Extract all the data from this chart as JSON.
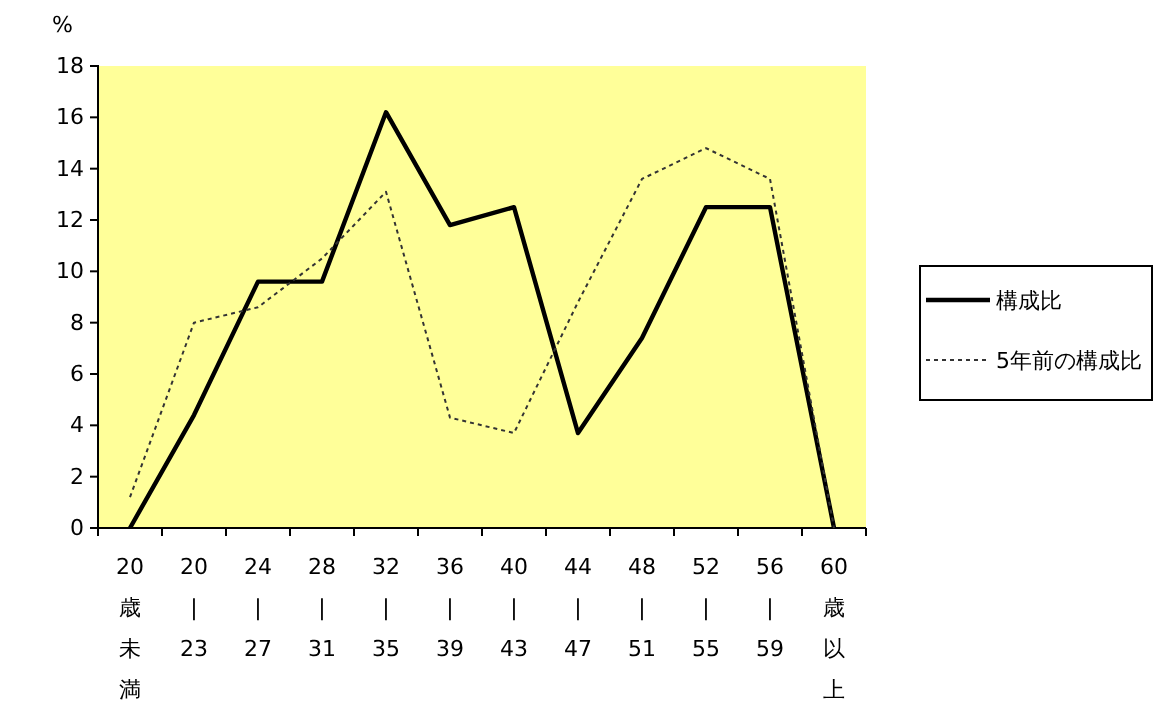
{
  "chart_data": {
    "type": "line",
    "ylabel": "%",
    "categories": [
      "20歳未満",
      "20\n|\n23",
      "24\n|\n27",
      "28\n|\n31",
      "32\n|\n35",
      "36\n|\n39",
      "40\n|\n43",
      "44\n|\n47",
      "48\n|\n51",
      "52\n|\n55",
      "56\n|\n59",
      "60歳以上"
    ],
    "series": [
      {
        "name": "構成比",
        "color": "#000000",
        "line_style": "solid",
        "values": [
          0,
          4.4,
          9.6,
          9.6,
          16.2,
          11.8,
          12.5,
          3.7,
          7.4,
          12.5,
          12.5,
          0
        ]
      },
      {
        "name": "5年前の構成比",
        "color": "#333333",
        "line_style": "dotted",
        "values": [
          1.2,
          8.0,
          8.6,
          10.5,
          13.1,
          4.3,
          3.7,
          8.8,
          13.6,
          14.8,
          13.6,
          0
        ]
      }
    ],
    "ylim": [
      0,
      18
    ],
    "yticks": [
      0,
      2,
      4,
      6,
      8,
      10,
      12,
      14,
      16,
      18
    ],
    "grid": false,
    "legend": "right",
    "marker": "none"
  }
}
